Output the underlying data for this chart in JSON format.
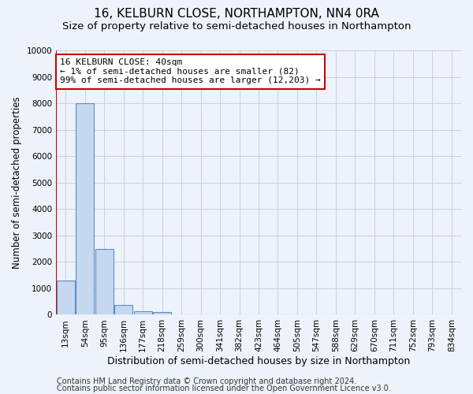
{
  "title": "16, KELBURN CLOSE, NORTHAMPTON, NN4 0RA",
  "subtitle": "Size of property relative to semi-detached houses in Northampton",
  "xlabel": "Distribution of semi-detached houses by size in Northampton",
  "ylabel": "Number of semi-detached properties",
  "categories": [
    "13sqm",
    "54sqm",
    "95sqm",
    "136sqm",
    "177sqm",
    "218sqm",
    "259sqm",
    "300sqm",
    "341sqm",
    "382sqm",
    "423sqm",
    "464sqm",
    "505sqm",
    "547sqm",
    "588sqm",
    "629sqm",
    "670sqm",
    "711sqm",
    "752sqm",
    "793sqm",
    "834sqm"
  ],
  "bar_heights": [
    1300,
    8000,
    2500,
    380,
    130,
    100,
    5,
    2,
    1,
    1,
    0,
    0,
    0,
    0,
    0,
    0,
    0,
    0,
    0,
    0,
    0
  ],
  "bar_color": "#c5d8f0",
  "bar_edge_color": "#5b8ec4",
  "annotation_text": "16 KELBURN CLOSE: 40sqm\n← 1% of semi-detached houses are smaller (82)\n99% of semi-detached houses are larger (12,203) →",
  "annotation_box_color": "#ffffff",
  "annotation_box_edge": "#cc0000",
  "red_line_color": "#cc0000",
  "ylim": [
    0,
    10000
  ],
  "yticks": [
    0,
    1000,
    2000,
    3000,
    4000,
    5000,
    6000,
    7000,
    8000,
    9000,
    10000
  ],
  "footer1": "Contains HM Land Registry data © Crown copyright and database right 2024.",
  "footer2": "Contains public sector information licensed under the Open Government Licence v3.0.",
  "bg_color": "#eef2fb",
  "plot_bg_color": "#eef2fb",
  "grid_color": "#c8cfe0",
  "title_fontsize": 11,
  "subtitle_fontsize": 9.5,
  "ylabel_fontsize": 8.5,
  "xlabel_fontsize": 9,
  "annotation_fontsize": 8,
  "tick_fontsize": 7.5,
  "footer_fontsize": 7
}
